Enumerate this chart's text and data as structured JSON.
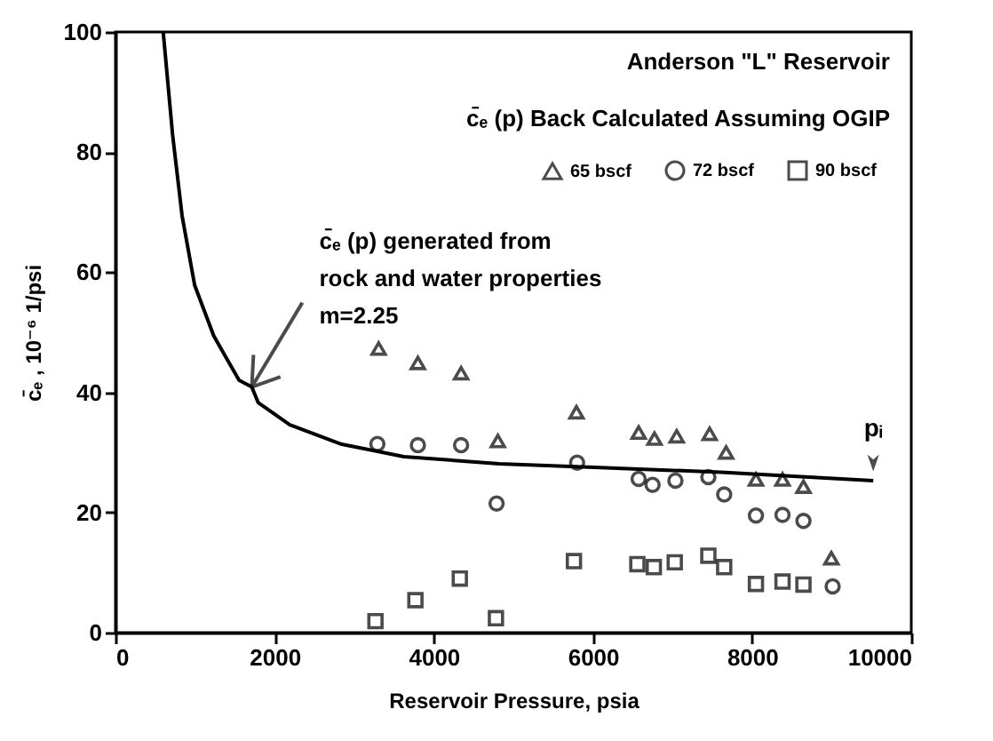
{
  "chart_data": {
    "type": "scatter",
    "title": "Anderson \"L\" Reservoir",
    "subtitle": "c̄ₑ (p) Back Calculated Assuming OGIP",
    "xlabel": "Reservoir Pressure, psia",
    "ylabel": "c̄ₑ , 10⁻⁶ 1/psi",
    "xlim": [
      0,
      10000
    ],
    "xticks": [
      0,
      2000,
      4000,
      6000,
      8000,
      10000
    ],
    "ylim": [
      0,
      100
    ],
    "yticks": [
      0,
      20,
      40,
      60,
      80,
      100
    ],
    "grid": false,
    "legend": "top right",
    "annotations": [
      {
        "text": "c̄ₑ (p) generated from\nrock and water properties\nm=2.25",
        "x": 1713,
        "y": 40.9
      },
      {
        "text": "pᵢ",
        "x": 9522,
        "y": 25.3
      }
    ],
    "series": [
      {
        "type": "line",
        "color": "#000000",
        "marker": "none",
        "x": [
          600,
          717,
          837,
          996,
          1235,
          1554,
          1713,
          1793,
          2191,
          2829,
          3625,
          4821,
          6016,
          7610,
          9522
        ],
        "values": [
          100,
          83,
          69.4,
          57.8,
          49.4,
          42,
          40.9,
          38.3,
          34.6,
          31.4,
          29.3,
          28.1,
          27.5,
          26.7,
          25.3
        ]
      },
      {
        "name": "65 bscf",
        "marker": "triangle",
        "color": "#000000",
        "x": [
          3307,
          3800,
          4343,
          4805,
          5793,
          6574,
          6773,
          7052,
          7466,
          7673,
          8048,
          8382,
          8645,
          8996
        ],
        "values": [
          47.3,
          44.9,
          43.2,
          31.9,
          36.7,
          33.3,
          32.3,
          32.7,
          33.1,
          30.0,
          25.5,
          25.5,
          24.3,
          12.4
        ]
      },
      {
        "name": "72 bscf",
        "marker": "circle",
        "color": "#000000",
        "x": [
          3291,
          3800,
          4343,
          4789,
          5801,
          6574,
          6749,
          7036,
          7450,
          7649,
          8048,
          8382,
          8645,
          9012
        ],
        "values": [
          31.4,
          31.2,
          31.2,
          21.5,
          28.3,
          25.6,
          24.6,
          25.3,
          25.9,
          23.0,
          19.5,
          19.6,
          18.6,
          7.7
        ]
      },
      {
        "name": "90 bscf",
        "marker": "square",
        "color": "#000000",
        "x": [
          3267,
          3769,
          4327,
          4781,
          5761,
          6558,
          6765,
          7028,
          7450,
          7649,
          8048,
          8382,
          8645
        ],
        "values": [
          1.9,
          5.4,
          9.0,
          2.4,
          11.9,
          11.4,
          10.9,
          11.7,
          12.8,
          10.9,
          8.1,
          8.5,
          8.0
        ]
      }
    ]
  }
}
